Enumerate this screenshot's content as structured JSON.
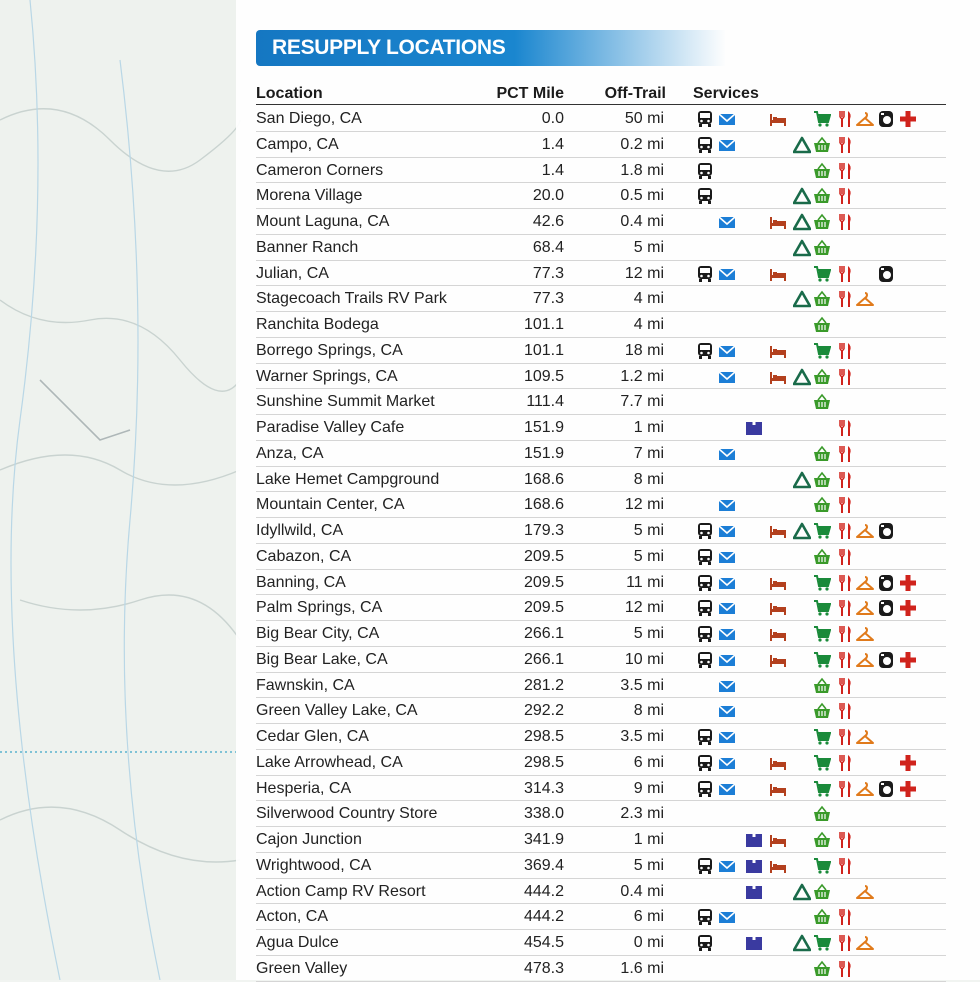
{
  "title": "RESUPPLY LOCATIONS",
  "headers": {
    "location": "Location",
    "mile": "PCT Mile",
    "off": "Off-Trail",
    "services": "Services"
  },
  "service_icons": [
    "bus-icon",
    "mail-icon",
    "box-icon",
    "bed-icon",
    "tent-icon",
    "basket-icon",
    "cart-icon",
    "fork-knife-icon",
    "hanger-icon",
    "washer-icon",
    "first-aid-icon"
  ],
  "colors": {
    "banner": "#1577c2",
    "bus": "#1a1a1a",
    "mail": "#1c7ed6",
    "box": "#3a3aa0",
    "bed": "#b3401e",
    "tent": "#1a6b4a",
    "basket": "#3a9a2a",
    "cart": "#1a8a3a",
    "food": "#d0231c",
    "hanger": "#e07a1b",
    "washer": "#1a1a1a",
    "first_aid": "#d0231c"
  },
  "rows": [
    {
      "location": "San Diego, CA",
      "mile": "0.0",
      "off": "50 mi",
      "services": [
        "bus",
        "mail",
        "bed",
        "cart",
        "food",
        "hanger",
        "washer",
        "aid"
      ]
    },
    {
      "location": "Campo, CA",
      "mile": "1.4",
      "off": "0.2 mi",
      "services": [
        "bus",
        "mail",
        "tent",
        "basket",
        "food"
      ]
    },
    {
      "location": "Cameron Corners",
      "mile": "1.4",
      "off": "1.8 mi",
      "services": [
        "bus",
        "basket",
        "food"
      ]
    },
    {
      "location": "Morena Village",
      "mile": "20.0",
      "off": "0.5 mi",
      "services": [
        "bus",
        "tent",
        "basket",
        "food"
      ]
    },
    {
      "location": "Mount Laguna, CA",
      "mile": "42.6",
      "off": "0.4 mi",
      "services": [
        "mail",
        "bed",
        "tent",
        "basket",
        "food"
      ]
    },
    {
      "location": "Banner Ranch",
      "mile": "68.4",
      "off": "5 mi",
      "services": [
        "tent",
        "basket"
      ]
    },
    {
      "location": "Julian, CA",
      "mile": "77.3",
      "off": "12 mi",
      "services": [
        "bus",
        "mail",
        "bed",
        "cart",
        "food",
        "washer"
      ]
    },
    {
      "location": "Stagecoach Trails RV Park",
      "mile": "77.3",
      "off": "4 mi",
      "services": [
        "tent",
        "basket",
        "food",
        "hanger"
      ]
    },
    {
      "location": "Ranchita Bodega",
      "mile": "101.1",
      "off": "4 mi",
      "services": [
        "basket"
      ]
    },
    {
      "location": "Borrego Springs, CA",
      "mile": "101.1",
      "off": "18 mi",
      "services": [
        "bus",
        "mail",
        "bed",
        "cart",
        "food"
      ]
    },
    {
      "location": "Warner Springs, CA",
      "mile": "109.5",
      "off": "1.2 mi",
      "services": [
        "mail",
        "bed",
        "tent",
        "basket",
        "food"
      ]
    },
    {
      "location": "Sunshine Summit Market",
      "mile": "111.4",
      "off": "7.7 mi",
      "services": [
        "basket"
      ]
    },
    {
      "location": "Paradise Valley Cafe",
      "mile": "151.9",
      "off": "1 mi",
      "services": [
        "box",
        "food"
      ]
    },
    {
      "location": "Anza, CA",
      "mile": "151.9",
      "off": "7 mi",
      "services": [
        "mail",
        "basket",
        "food"
      ]
    },
    {
      "location": "Lake Hemet Campground",
      "mile": "168.6",
      "off": "8 mi",
      "services": [
        "tent",
        "basket",
        "food"
      ]
    },
    {
      "location": "Mountain Center, CA",
      "mile": "168.6",
      "off": "12 mi",
      "services": [
        "mail",
        "basket",
        "food"
      ]
    },
    {
      "location": "Idyllwild, CA",
      "mile": "179.3",
      "off": "5 mi",
      "services": [
        "bus",
        "mail",
        "bed",
        "tent",
        "cart",
        "food",
        "hanger",
        "washer"
      ]
    },
    {
      "location": "Cabazon, CA",
      "mile": "209.5",
      "off": "5 mi",
      "services": [
        "bus",
        "mail",
        "basket",
        "food"
      ]
    },
    {
      "location": "Banning, CA",
      "mile": "209.5",
      "off": "11 mi",
      "services": [
        "bus",
        "mail",
        "bed",
        "cart",
        "food",
        "hanger",
        "washer",
        "aid"
      ]
    },
    {
      "location": "Palm Springs, CA",
      "mile": "209.5",
      "off": "12 mi",
      "services": [
        "bus",
        "mail",
        "bed",
        "cart",
        "food",
        "hanger",
        "washer",
        "aid"
      ]
    },
    {
      "location": "Big Bear City, CA",
      "mile": "266.1",
      "off": "5 mi",
      "services": [
        "bus",
        "mail",
        "bed",
        "cart",
        "food",
        "hanger"
      ]
    },
    {
      "location": "Big Bear Lake, CA",
      "mile": "266.1",
      "off": "10 mi",
      "services": [
        "bus",
        "mail",
        "bed",
        "cart",
        "food",
        "hanger",
        "washer",
        "aid"
      ]
    },
    {
      "location": "Fawnskin, CA",
      "mile": "281.2",
      "off": "3.5 mi",
      "services": [
        "mail",
        "basket",
        "food"
      ]
    },
    {
      "location": "Green Valley Lake, CA",
      "mile": "292.2",
      "off": "8 mi",
      "services": [
        "mail",
        "basket",
        "food"
      ]
    },
    {
      "location": "Cedar Glen, CA",
      "mile": "298.5",
      "off": "3.5 mi",
      "services": [
        "bus",
        "mail",
        "cart",
        "food",
        "hanger"
      ]
    },
    {
      "location": "Lake Arrowhead, CA",
      "mile": "298.5",
      "off": "6 mi",
      "services": [
        "bus",
        "mail",
        "bed",
        "cart",
        "food",
        "aid"
      ]
    },
    {
      "location": "Hesperia, CA",
      "mile": "314.3",
      "off": "9 mi",
      "services": [
        "bus",
        "mail",
        "bed",
        "cart",
        "food",
        "hanger",
        "washer",
        "aid"
      ]
    },
    {
      "location": "Silverwood Country Store",
      "mile": "338.0",
      "off": "2.3 mi",
      "services": [
        "basket"
      ]
    },
    {
      "location": "Cajon Junction",
      "mile": "341.9",
      "off": "1 mi",
      "services": [
        "box",
        "bed",
        "basket",
        "food"
      ]
    },
    {
      "location": "Wrightwood, CA",
      "mile": "369.4",
      "off": "5 mi",
      "services": [
        "bus",
        "mail",
        "box",
        "bed",
        "cart",
        "food"
      ]
    },
    {
      "location": "Action Camp RV Resort",
      "mile": "444.2",
      "off": "0.4 mi",
      "services": [
        "box",
        "tent",
        "basket",
        "hanger"
      ]
    },
    {
      "location": "Acton, CA",
      "mile": "444.2",
      "off": "6 mi",
      "services": [
        "bus",
        "mail",
        "basket",
        "food"
      ]
    },
    {
      "location": "Agua Dulce",
      "mile": "454.5",
      "off": "0 mi",
      "services": [
        "bus",
        "box",
        "tent",
        "cart",
        "food",
        "hanger"
      ]
    },
    {
      "location": "Green Valley",
      "mile": "478.3",
      "off": "1.6 mi",
      "services": [
        "basket",
        "food"
      ]
    }
  ]
}
